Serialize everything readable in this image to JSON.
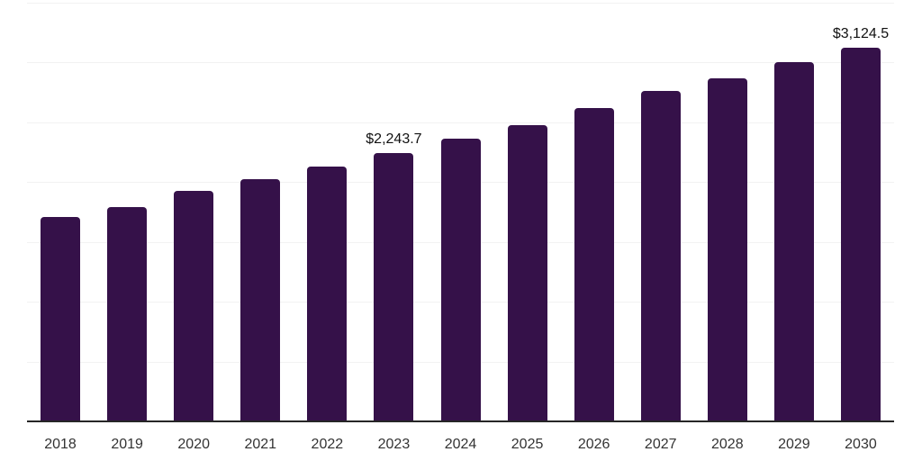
{
  "chart_data": {
    "type": "bar",
    "title": "",
    "xlabel": "",
    "ylabel": "",
    "categories": [
      "2018",
      "2019",
      "2020",
      "2021",
      "2022",
      "2023",
      "2024",
      "2025",
      "2026",
      "2027",
      "2028",
      "2029",
      "2030"
    ],
    "values": [
      1706,
      1792,
      1929,
      2025,
      2132,
      2243.7,
      2363,
      2480,
      2618,
      2763,
      2870,
      3001,
      3124.5
    ],
    "data_labels": {
      "2023": "$2,243.7",
      "2030": "$3,124.5"
    },
    "ylim": [
      0,
      3500
    ],
    "gridline_step": 500,
    "grid": true,
    "legend_position": "none",
    "colors": {
      "bar": "#351149",
      "gridline": "#f2f2f2",
      "axis": "#262626",
      "data_label_text": "#111111",
      "tick_label_text": "#333333",
      "background": "#ffffff"
    }
  }
}
